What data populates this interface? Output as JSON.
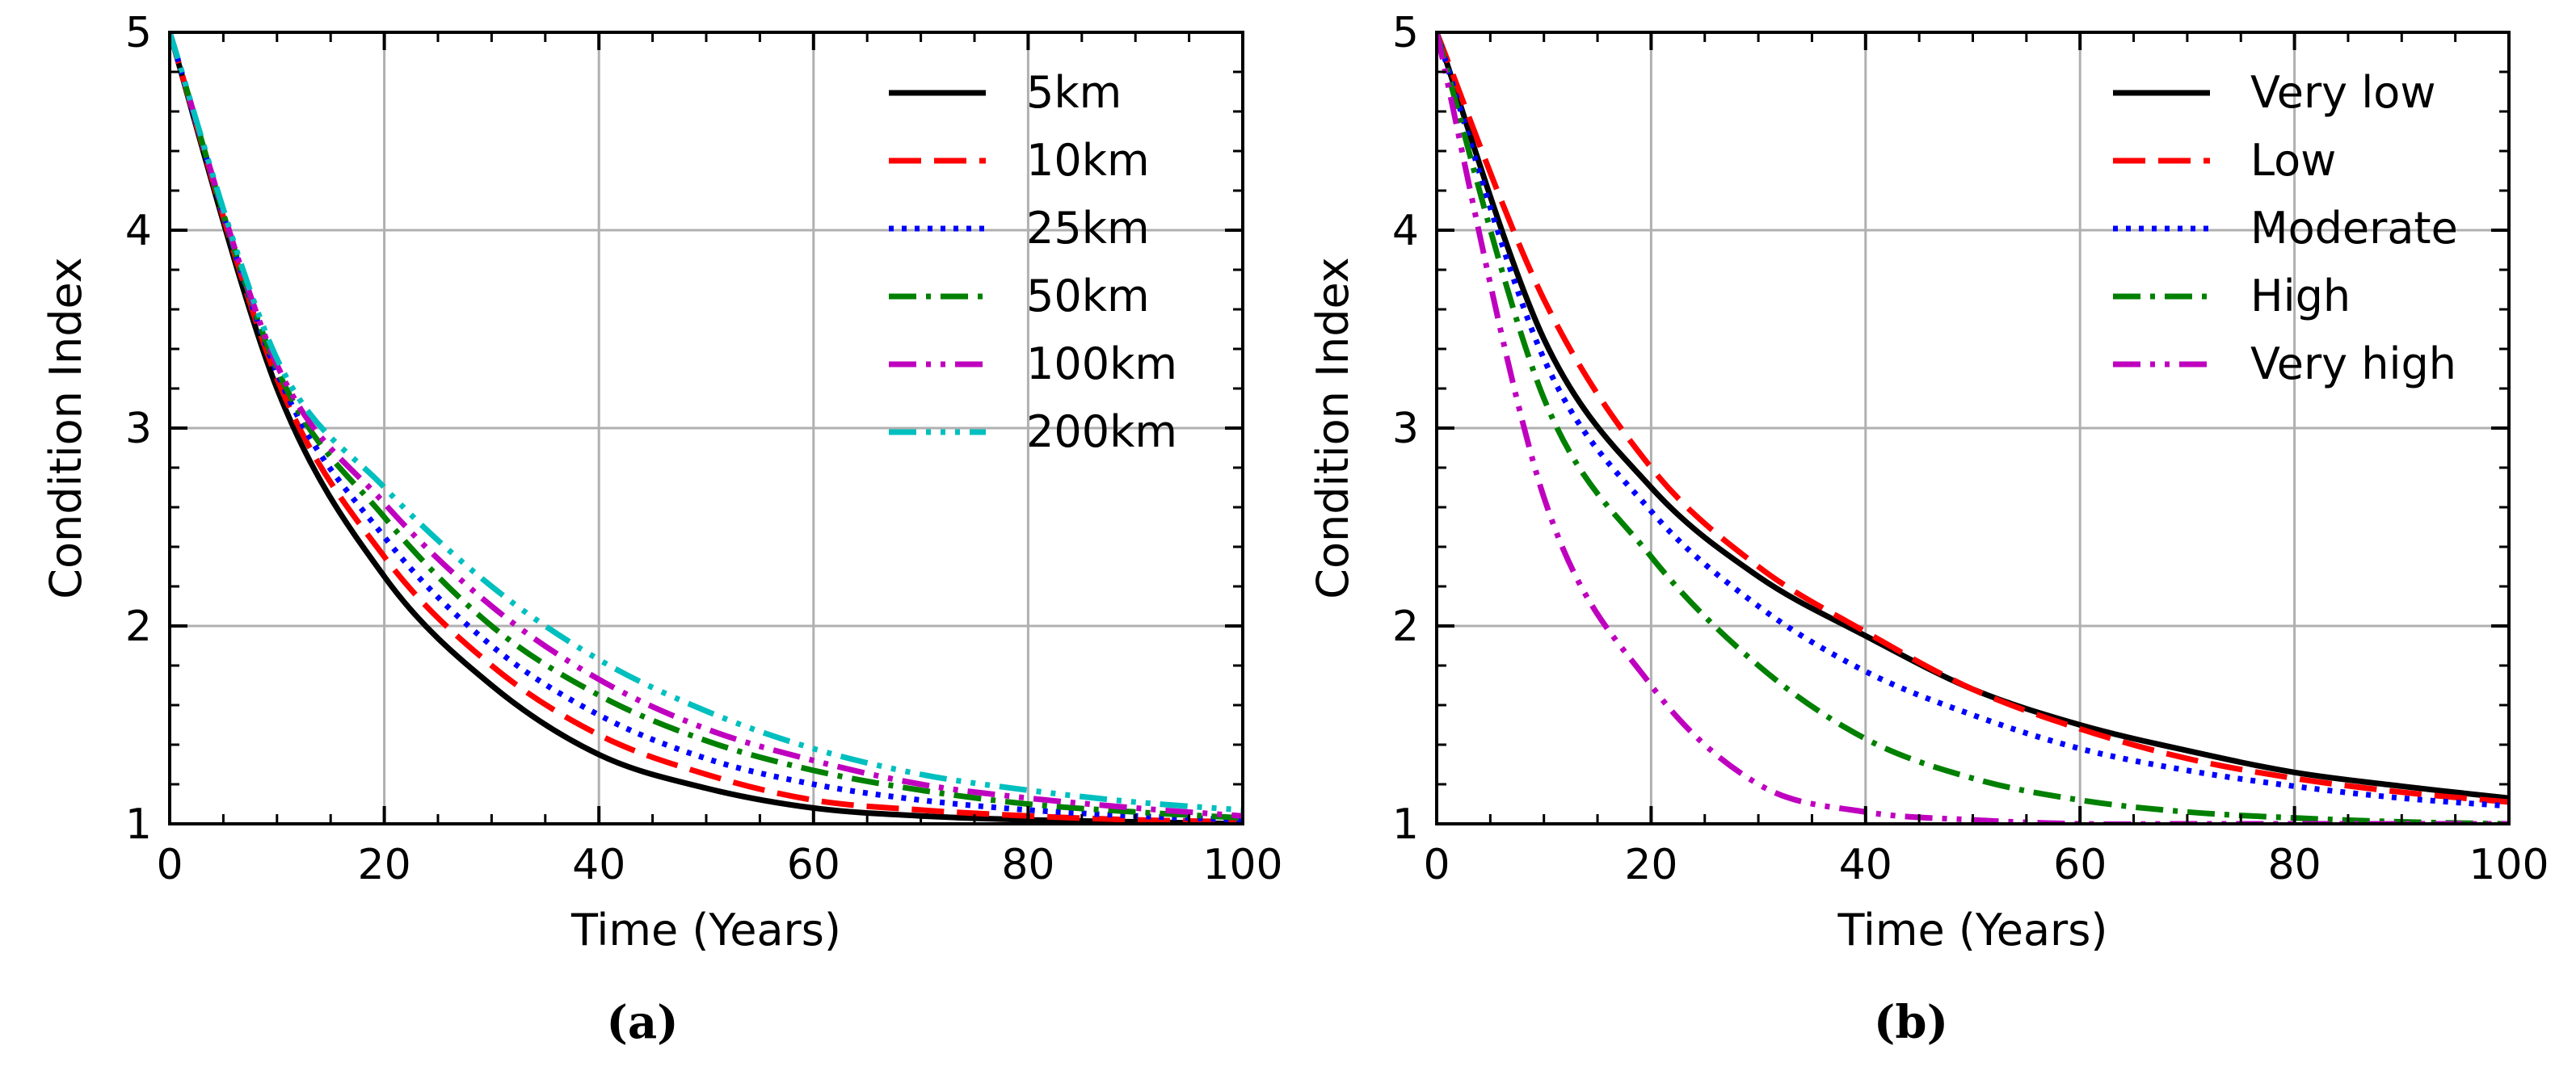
{
  "chart_data": [
    {
      "type": "line",
      "caption": "(a)",
      "xlabel": "Time (Years)",
      "ylabel": "Condition Index",
      "xlim": [
        0,
        100
      ],
      "ylim": [
        1,
        5
      ],
      "xticks": [
        0,
        20,
        40,
        60,
        80,
        100
      ],
      "yticks": [
        1,
        2,
        3,
        4,
        5
      ],
      "grid": true,
      "legend_position": "top-right",
      "x": [
        0,
        10,
        20,
        30,
        40,
        50,
        60,
        70,
        80,
        90,
        100
      ],
      "series": [
        {
          "name": "5km",
          "color": "#000000",
          "style": "solid",
          "values": [
            5.0,
            3.2,
            2.25,
            1.7,
            1.35,
            1.18,
            1.08,
            1.04,
            1.02,
            1.01,
            1.0
          ]
        },
        {
          "name": "10km",
          "color": "#ff0000",
          "style": "dashed",
          "values": [
            5.0,
            3.25,
            2.35,
            1.8,
            1.45,
            1.25,
            1.12,
            1.07,
            1.04,
            1.02,
            1.01
          ]
        },
        {
          "name": "25km",
          "color": "#0000ff",
          "style": "dotted",
          "values": [
            5.0,
            3.28,
            2.45,
            1.9,
            1.55,
            1.33,
            1.2,
            1.12,
            1.07,
            1.04,
            1.02
          ]
        },
        {
          "name": "50km",
          "color": "#008000",
          "style": "dashdot",
          "values": [
            5.0,
            3.3,
            2.55,
            2.0,
            1.65,
            1.42,
            1.27,
            1.17,
            1.1,
            1.06,
            1.03
          ]
        },
        {
          "name": "100km",
          "color": "#bf00bf",
          "style": "dashdotdot",
          "values": [
            5.0,
            3.32,
            2.62,
            2.1,
            1.73,
            1.48,
            1.32,
            1.2,
            1.13,
            1.08,
            1.04
          ]
        },
        {
          "name": "200km",
          "color": "#00bfbf",
          "style": "dashdotdotdot",
          "values": [
            5.0,
            3.35,
            2.7,
            2.2,
            1.83,
            1.57,
            1.38,
            1.25,
            1.17,
            1.11,
            1.07
          ]
        }
      ]
    },
    {
      "type": "line",
      "caption": "(b)",
      "xlabel": "Time (Years)",
      "ylabel": "Condition Index",
      "xlim": [
        0,
        100
      ],
      "ylim": [
        1,
        5
      ],
      "xticks": [
        0,
        20,
        40,
        60,
        80,
        100
      ],
      "yticks": [
        1,
        2,
        3,
        4,
        5
      ],
      "grid": true,
      "legend_position": "top-right",
      "x": [
        0,
        10,
        20,
        30,
        40,
        50,
        60,
        70,
        80,
        90,
        100
      ],
      "series": [
        {
          "name": "Very low",
          "color": "#000000",
          "style": "solid",
          "values": [
            5.0,
            3.45,
            2.7,
            2.25,
            1.95,
            1.68,
            1.5,
            1.37,
            1.26,
            1.19,
            1.13
          ]
        },
        {
          "name": "Low",
          "color": "#ff0000",
          "style": "dashed",
          "values": [
            5.0,
            3.65,
            2.8,
            2.3,
            1.97,
            1.68,
            1.48,
            1.33,
            1.23,
            1.16,
            1.11
          ]
        },
        {
          "name": "Moderate",
          "color": "#0000ff",
          "style": "dotted",
          "values": [
            5.0,
            3.35,
            2.58,
            2.1,
            1.77,
            1.55,
            1.38,
            1.27,
            1.19,
            1.13,
            1.09
          ]
        },
        {
          "name": "High",
          "color": "#008000",
          "style": "dashdot",
          "values": [
            5.0,
            3.15,
            2.35,
            1.8,
            1.43,
            1.23,
            1.12,
            1.06,
            1.03,
            1.01,
            1.0
          ]
        },
        {
          "name": "Very high",
          "color": "#bf00bf",
          "style": "dashdotdot",
          "values": [
            5.0,
            2.65,
            1.7,
            1.2,
            1.06,
            1.02,
            1.0,
            1.0,
            1.0,
            1.0,
            1.0
          ]
        }
      ]
    }
  ]
}
